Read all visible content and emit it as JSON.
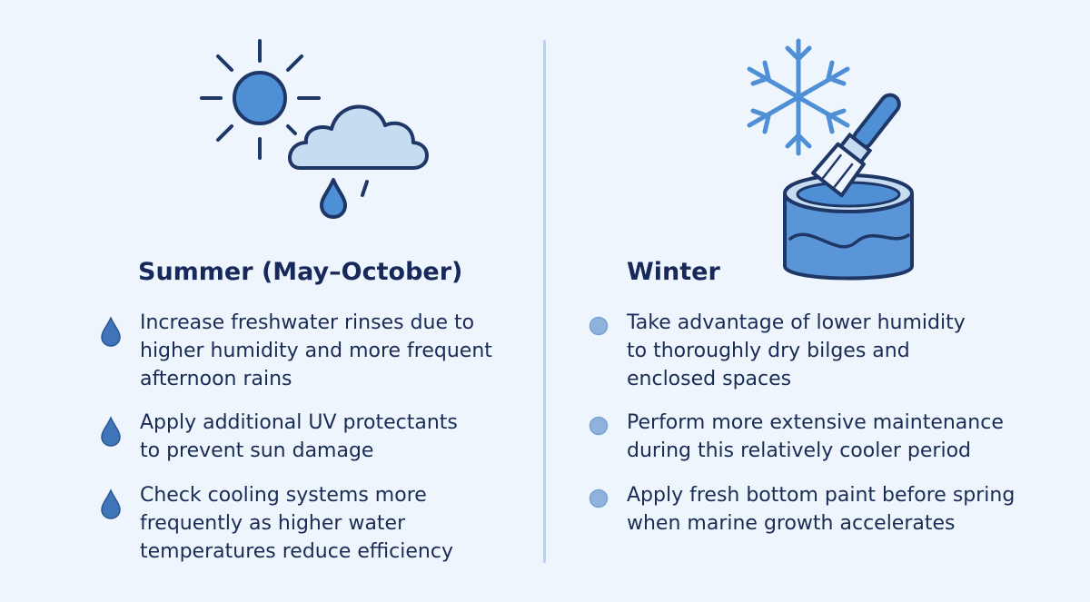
{
  "summer": {
    "title": "Summer (May–October)",
    "icon": "sun-cloud-rain-icon",
    "bullet_icon": "water-drop-icon",
    "items": [
      {
        "lines": [
          "Increase freshwater rinses due to",
          "higher humidity and more frequent",
          "afternoon rains"
        ]
      },
      {
        "lines": [
          "Apply additional UV protectants",
          "to prevent sun damage"
        ]
      },
      {
        "lines": [
          "Check cooling systems more",
          "frequently as higher water",
          "temperatures reduce efficiency"
        ]
      }
    ]
  },
  "winter": {
    "title": "Winter",
    "icon": "snowflake-paint-can-icon",
    "bullet_icon": "circle-dot-icon",
    "items": [
      {
        "lines": [
          "Take advantage of lower humidity",
          "to thoroughly dry bilges and",
          "enclosed spaces"
        ]
      },
      {
        "lines": [
          "Perform more extensive  maintenance",
          "during this relatively cooler period"
        ]
      },
      {
        "lines": [
          "Apply fresh bottom paint before spring",
          "when marine growth accelerates"
        ]
      }
    ]
  },
  "colors": {
    "background": "#eef5fc",
    "text": "#1a2c55",
    "heading": "#17285a",
    "accent_blue": "#4f8fd6",
    "outline": "#1e3766",
    "light_blue": "#c6dcf1",
    "divider": "#b9d1e9"
  }
}
